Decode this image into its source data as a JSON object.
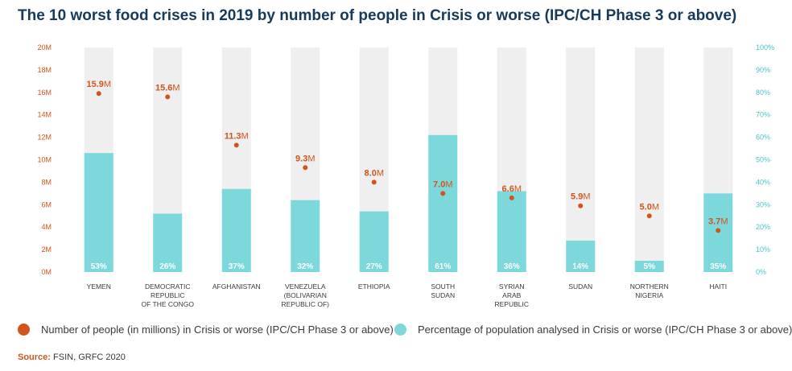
{
  "title": "The 10 worst food crises in 2019 by number of people in Crisis or worse (IPC/CH Phase 3 or above)",
  "colors": {
    "title": "#153a5b",
    "people": "#d2541c",
    "percent": "#7dd8dc",
    "background_bar": "#efefef",
    "left_axis": "#d2541c",
    "right_axis": "#4cc3c9"
  },
  "chart_data": {
    "type": "bar",
    "title": "The 10 worst food crises in 2019 by number of people in Crisis or worse (IPC/CH Phase 3 or above)",
    "categories": [
      [
        "YEMEN"
      ],
      [
        "DEMOCRATIC",
        "REPUBLIC",
        "OF THE CONGO"
      ],
      [
        "AFGHANISTAN"
      ],
      [
        "VENEZUELA",
        "(BOLIVARIAN",
        "REPUBLIC OF)"
      ],
      [
        "ETHIOPIA"
      ],
      [
        "SOUTH",
        "SUDAN"
      ],
      [
        "SYRIAN",
        "ARAB",
        "REPUBLIC"
      ],
      [
        "SUDAN"
      ],
      [
        "NORTHERN",
        "NIGERIA"
      ],
      [
        "HAITI"
      ]
    ],
    "series": [
      {
        "name": "Number of people (in millions) in Crisis or worse (IPC/CH Phase 3 or above)",
        "type": "scatter",
        "axis": "left",
        "values": [
          15.9,
          15.6,
          11.3,
          9.3,
          8.0,
          7.0,
          6.6,
          5.9,
          5.0,
          3.7
        ],
        "labels": [
          "15.9",
          "15.6",
          "11.3",
          "9.3",
          "8.0",
          "7.0",
          "6.6",
          "5.9",
          "5.0",
          "3.7"
        ],
        "label_suffix": "M"
      },
      {
        "name": "Percentage of population analysed in Crisis or worse (IPC/CH Phase 3 or above)",
        "type": "bar",
        "axis": "right",
        "values": [
          53,
          26,
          37,
          32,
          27,
          61,
          36,
          14,
          5,
          35
        ],
        "labels": [
          "53%",
          "26%",
          "37%",
          "32%",
          "27%",
          "61%",
          "36%",
          "14%",
          "5%",
          "35%"
        ]
      }
    ],
    "y_left": {
      "range": [
        0,
        20
      ],
      "ticks": [
        "0M",
        "2M",
        "4M",
        "6M",
        "8M",
        "10M",
        "12M",
        "14M",
        "16M",
        "18M",
        "20M"
      ]
    },
    "y_right": {
      "range": [
        0,
        100
      ],
      "ticks": [
        "0%",
        "10%",
        "20%",
        "30%",
        "40%",
        "50%",
        "60%",
        "70%",
        "80%",
        "90%",
        "100%"
      ]
    },
    "grid": false,
    "legend": "bottom"
  },
  "legend": {
    "people_label": "Number of people (in millions) in Crisis or worse (IPC/CH Phase 3 or above)",
    "percent_label": "Percentage of population analysed in Crisis or worse (IPC/CH Phase 3 or above)"
  },
  "source": {
    "label": "Source:",
    "text": "FSIN, GRFC 2020"
  }
}
